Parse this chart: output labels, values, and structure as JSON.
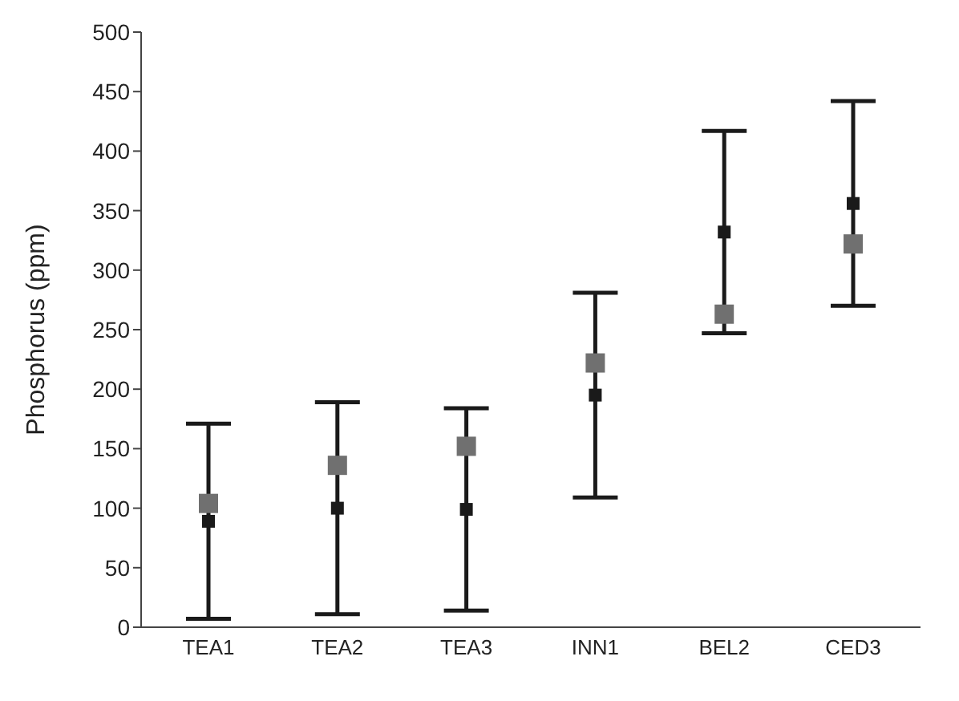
{
  "chart_data": {
    "type": "scatter",
    "ylabel": "Phosphorus (ppm)",
    "categories": [
      "TEA1",
      "TEA2",
      "TEA3",
      "INN1",
      "BEL2",
      "CED3"
    ],
    "series": [
      {
        "color": "#1a1a1a",
        "values": [
          89,
          100,
          99,
          195,
          332,
          356
        ],
        "errors": [
          82,
          89,
          85,
          86,
          85,
          86
        ]
      },
      {
        "color": "#707070",
        "values": [
          104,
          136,
          152,
          222,
          263,
          322
        ]
      }
    ],
    "ylim": [
      0,
      500
    ],
    "yticks": [
      0,
      50,
      100,
      150,
      200,
      250,
      300,
      350,
      400,
      450,
      500
    ],
    "grid": false,
    "legend": false,
    "marker": "square"
  }
}
